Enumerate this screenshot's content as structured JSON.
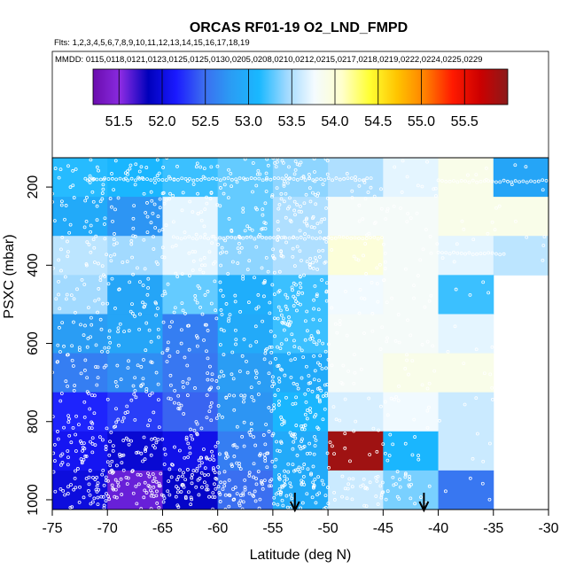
{
  "chart_data": {
    "type": "heatmap",
    "title": "ORCAS RF01-19 O2_LND_FMPD",
    "subtitle_flights": "Flts: 1,2,3,4,5,6,7,8,9,10,11,12,13,14,15,16,17,18,19",
    "subtitle_dates": "MMDD: 0115,0118,0121,0123,0125,0125,0130,0205,0208,0210,0212,0215,0217,0218,0219,0222,0224,0225,0229",
    "xlabel": "Latitude (deg N)",
    "ylabel": "PSXC (mbar)",
    "xlim": [
      -75,
      -30
    ],
    "ylim": [
      1000,
      100
    ],
    "x_ticks": [
      -75,
      -70,
      -65,
      -60,
      -55,
      -50,
      -45,
      -40,
      -35,
      -30
    ],
    "y_ticks": [
      200,
      400,
      600,
      800,
      1000
    ],
    "colorbar": {
      "range": [
        51.2,
        56.0
      ],
      "ticks": [
        51.5,
        52.0,
        52.5,
        53.0,
        53.5,
        54.0,
        54.5,
        55.0,
        55.5
      ],
      "stops": [
        "#6a0dad",
        "#8a2be2",
        "#0000bb",
        "#1a1aff",
        "#3c6cf0",
        "#2a9df4",
        "#19b8ff",
        "#9fd9ff",
        "#f4fbff",
        "#ffffcc",
        "#ffff33",
        "#ffc400",
        "#ff8000",
        "#ff1a00",
        "#cc0000",
        "#8b1a1a"
      ]
    },
    "x_bins": [
      -75,
      -70,
      -65,
      -60,
      -55,
      -50,
      -45,
      -40,
      -35,
      -30
    ],
    "p_bins": [
      100,
      100,
      100,
      100,
      100,
      100,
      100,
      100,
      100
    ],
    "p_bin_starts": [
      125,
      225,
      325,
      425,
      525,
      625,
      725,
      825,
      925
    ],
    "cells": [
      [
        53.15,
        53.1,
        53.2,
        53.3,
        53.4,
        53.5,
        53.7,
        53.9,
        52.9
      ],
      [
        52.95,
        52.75,
        53.7,
        53.3,
        53.5,
        53.8,
        53.8,
        53.9,
        53.9
      ],
      [
        53.55,
        53.45,
        53.7,
        53.4,
        53.5,
        54.0,
        53.8,
        53.7,
        53.55
      ],
      [
        53.45,
        52.9,
        53.3,
        53.0,
        53.2,
        53.75,
        53.8,
        53.2,
        null
      ],
      [
        52.8,
        52.9,
        52.6,
        52.95,
        53.2,
        53.8,
        53.8,
        53.7,
        null
      ],
      [
        52.6,
        52.7,
        52.55,
        52.8,
        52.95,
        53.8,
        53.9,
        53.9,
        null
      ],
      [
        52.2,
        52.3,
        52.45,
        52.75,
        53.1,
        53.65,
        53.75,
        53.6,
        null
      ],
      [
        52.1,
        51.95,
        52.05,
        52.6,
        52.95,
        55.9,
        53.1,
        53.6,
        null
      ],
      [
        52.0,
        51.6,
        51.9,
        52.5,
        52.95,
        53.6,
        53.35,
        52.55,
        null
      ]
    ],
    "obs_columns_note": "scattered white observation markers across sampled grid",
    "arrows": [
      {
        "lat": -53.0
      },
      {
        "lat": -41.3
      }
    ]
  }
}
